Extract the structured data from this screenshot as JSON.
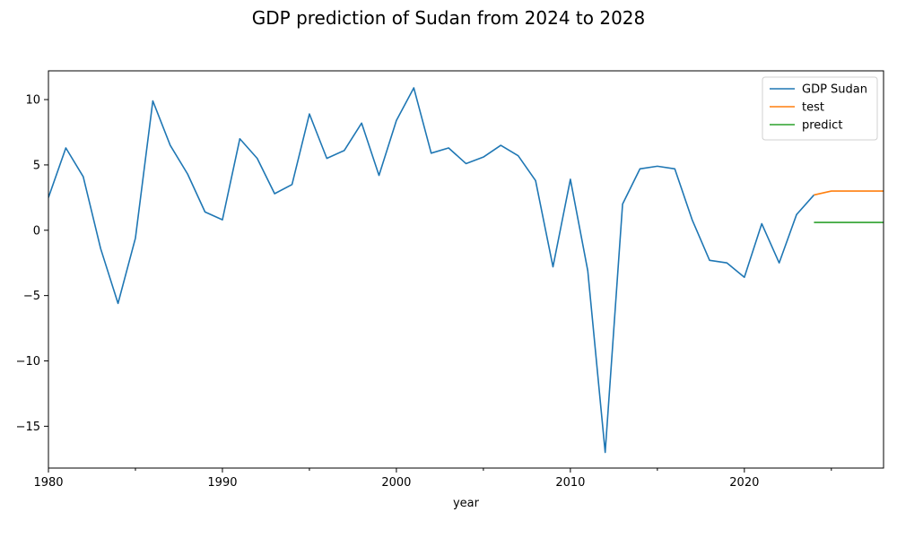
{
  "chart_data": {
    "type": "line",
    "title": "GDP prediction of Sudan from 2024 to 2028",
    "xlabel": "year",
    "ylabel": "",
    "xlim": [
      1980,
      2028
    ],
    "ylim": [
      -18.2,
      12.2
    ],
    "xticks": [
      1980,
      1990,
      2000,
      2010,
      2020
    ],
    "xticks_minor": [
      1985,
      1995,
      2005,
      2015,
      2025
    ],
    "yticks": [
      10,
      5,
      0,
      -5,
      -10,
      -15
    ],
    "grid": false,
    "legend_position": "top-right",
    "series": [
      {
        "name": "GDP Sudan",
        "color": "#1f77b4",
        "x": [
          1980,
          1981,
          1982,
          1983,
          1984,
          1985,
          1986,
          1987,
          1988,
          1989,
          1990,
          1991,
          1992,
          1993,
          1994,
          1995,
          1996,
          1997,
          1998,
          1999,
          2000,
          2001,
          2002,
          2003,
          2004,
          2005,
          2006,
          2007,
          2008,
          2009,
          2010,
          2011,
          2012,
          2013,
          2014,
          2015,
          2016,
          2017,
          2018,
          2019,
          2020,
          2021,
          2022,
          2023,
          2024
        ],
        "y": [
          2.5,
          6.3,
          4.1,
          -1.4,
          -5.6,
          -0.6,
          9.9,
          6.5,
          4.3,
          1.4,
          0.8,
          7.0,
          5.5,
          2.8,
          3.5,
          8.9,
          5.5,
          6.1,
          8.2,
          4.2,
          8.4,
          10.9,
          5.9,
          6.3,
          5.1,
          5.6,
          6.5,
          5.7,
          3.8,
          -2.8,
          3.9,
          -3.1,
          -17.0,
          2.0,
          4.7,
          4.9,
          4.7,
          0.8,
          -2.3,
          -2.5,
          -3.6,
          0.5,
          -2.5,
          1.2,
          2.7
        ]
      },
      {
        "name": "test",
        "color": "#ff7f0e",
        "x": [
          2024,
          2025,
          2026,
          2027,
          2028
        ],
        "y": [
          2.7,
          3.0,
          3.0,
          3.0,
          3.0
        ]
      },
      {
        "name": "predict",
        "color": "#2ca02c",
        "x": [
          2024,
          2025,
          2026,
          2027,
          2028
        ],
        "y": [
          0.6,
          0.6,
          0.6,
          0.6,
          0.6
        ]
      }
    ]
  }
}
